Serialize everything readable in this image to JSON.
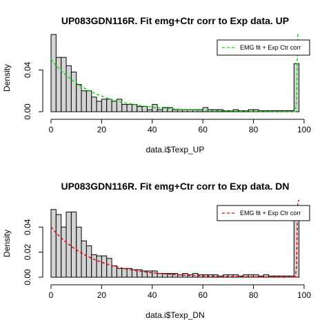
{
  "chart_data": [
    {
      "type": "bar",
      "title": "UP083GDN116R. Fit emg+Ctr corr to Exp data. UP",
      "xlabel": "data.i$Texp_UP",
      "ylabel": "Density",
      "xlim": [
        0,
        100
      ],
      "ylim": [
        0,
        0.066
      ],
      "xticks": [
        "0",
        "20",
        "40",
        "60",
        "80",
        "100"
      ],
      "yticks": [
        "0.00",
        "0.04"
      ],
      "bin_width": 2,
      "bins_start": [
        0,
        2,
        4,
        6,
        8,
        10,
        12,
        14,
        16,
        18,
        20,
        22,
        24,
        26,
        28,
        30,
        32,
        34,
        36,
        38,
        40,
        42,
        44,
        46,
        48,
        50,
        52,
        54,
        56,
        58,
        60,
        62,
        64,
        66,
        68,
        70,
        72,
        74,
        76,
        78,
        80,
        82,
        84,
        86,
        88,
        90,
        92,
        94,
        96
      ],
      "values": [
        0.074,
        0.052,
        0.052,
        0.044,
        0.038,
        0.026,
        0.02,
        0.02,
        0.014,
        0.01,
        0.012,
        0.012,
        0.01,
        0.012,
        0.007,
        0.007,
        0.007,
        0.005,
        0.005,
        0.002,
        0.007,
        0.002,
        0.004,
        0.004,
        0.002,
        0.002,
        0.002,
        0.002,
        0.002,
        0.002,
        0.004,
        0.002,
        0.002,
        0.002,
        0.001,
        0.001,
        0.002,
        0.001,
        0.001,
        0.002,
        0.002,
        0.001,
        0.001,
        0.001,
        0.001,
        0.001,
        0.001,
        0.001,
        0.046
      ],
      "curve": {
        "name": "EMG fit + Exp Ctr corr",
        "color": "#00dd00",
        "amplitude": 0.05,
        "decay_scale": 16.5,
        "spike_center": 97.5,
        "spike_level": 0.075
      },
      "legend_position": "top-right"
    },
    {
      "type": "bar",
      "title": "UP083GDN116R. Fit emg+Ctr corr to Exp data. DN",
      "xlabel": "data.i$Texp_DN",
      "ylabel": "Density",
      "xlim": [
        0,
        100
      ],
      "ylim": [
        0,
        0.055
      ],
      "xticks": [
        "0",
        "20",
        "40",
        "60",
        "80",
        "100"
      ],
      "yticks": [
        "0.00",
        "0.02",
        "0.04"
      ],
      "bin_width": 2,
      "bins_start": [
        0,
        2,
        4,
        6,
        8,
        10,
        12,
        14,
        16,
        18,
        20,
        22,
        24,
        26,
        28,
        30,
        32,
        34,
        36,
        38,
        40,
        42,
        44,
        46,
        48,
        50,
        52,
        54,
        56,
        58,
        60,
        62,
        64,
        66,
        68,
        70,
        72,
        74,
        76,
        78,
        80,
        82,
        84,
        86,
        88,
        90,
        92,
        94,
        96
      ],
      "values": [
        0.054,
        0.05,
        0.04,
        0.052,
        0.052,
        0.04,
        0.029,
        0.025,
        0.018,
        0.017,
        0.017,
        0.015,
        0.009,
        0.007,
        0.007,
        0.007,
        0.006,
        0.006,
        0.005,
        0.005,
        0.005,
        0.003,
        0.003,
        0.003,
        0.003,
        0.002,
        0.003,
        0.002,
        0.003,
        0.002,
        0.002,
        0.002,
        0.002,
        0.001,
        0.002,
        0.002,
        0.002,
        0.001,
        0.002,
        0.002,
        0.002,
        0.001,
        0.002,
        0.001,
        0.001,
        0.001,
        0.001,
        0.001,
        0.05
      ],
      "curve": {
        "name": "EMG fit + Exp Ctr corr",
        "color": "#ee0000",
        "amplitude": 0.04,
        "decay_scale": 16.5,
        "spike_center": 97.5,
        "spike_level": 0.06
      },
      "legend_position": "top-right"
    }
  ]
}
